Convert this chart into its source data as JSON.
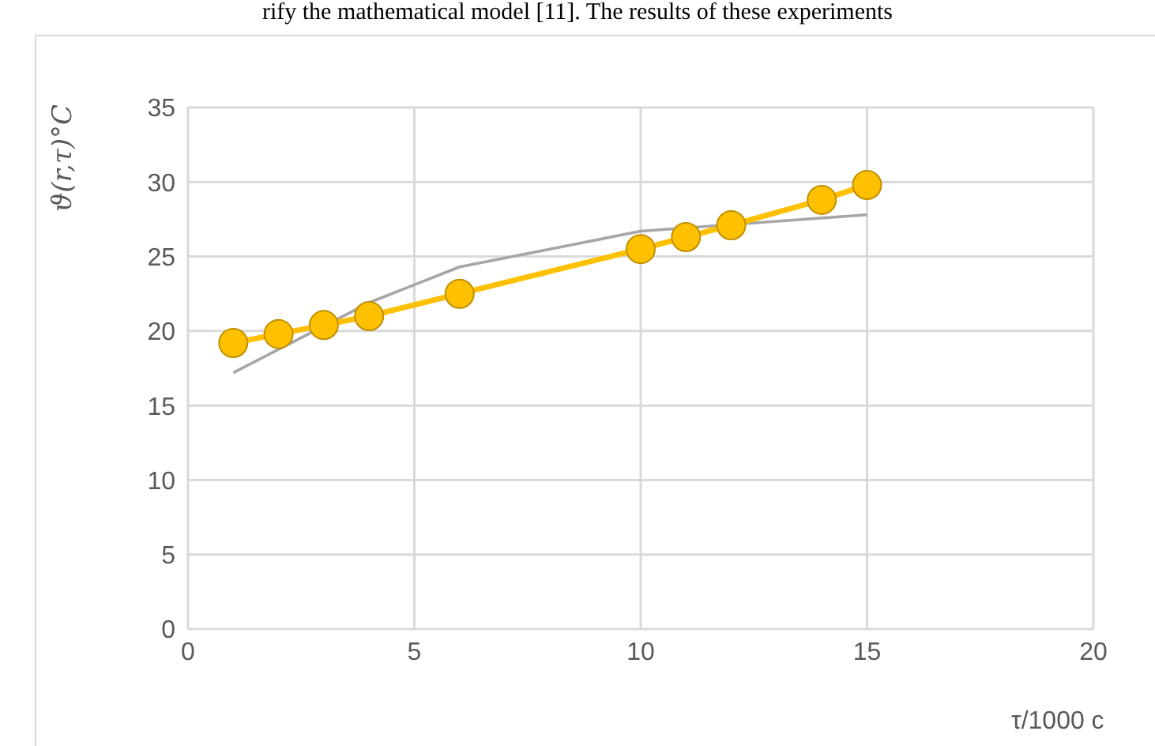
{
  "chart_data": {
    "type": "line",
    "xlabel": "τ/1000 c",
    "ylabel": "ϑ(r,τ)°C",
    "annotations": [
      "rify the mathematical model [11]. The results of these experiments"
    ],
    "xlim": [
      0,
      20
    ],
    "xticks": [
      0,
      5,
      10,
      15,
      20
    ],
    "ylim": [
      0,
      35
    ],
    "yticks": [
      0,
      5,
      10,
      15,
      20,
      25,
      30,
      35
    ],
    "grid": true,
    "series": [
      {
        "color": "#a6a6a6",
        "marker": "none",
        "x": [
          1,
          4,
          6,
          10,
          15
        ],
        "values": [
          17.2,
          21.9,
          24.3,
          26.7,
          27.8
        ]
      },
      {
        "color": "#ffc000",
        "marker": "circle",
        "x": [
          1,
          2,
          3,
          4,
          6,
          10,
          11,
          12,
          14,
          15
        ],
        "values": [
          19.2,
          19.8,
          20.4,
          21.0,
          22.5,
          25.5,
          26.3,
          27.1,
          28.8,
          29.8
        ]
      }
    ]
  }
}
